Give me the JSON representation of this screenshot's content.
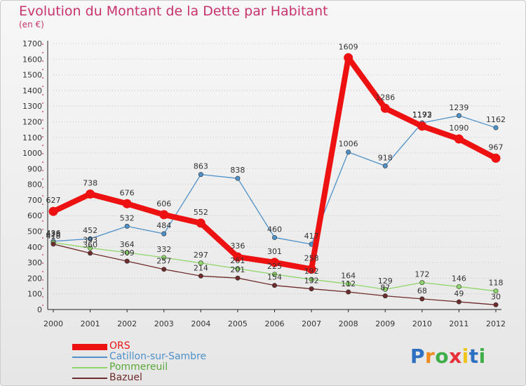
{
  "title": "Evolution du Montant de la Dette par Habitant",
  "unit_label": "(en €)",
  "logo": {
    "letters": [
      "P",
      "r",
      "o",
      "x",
      "i",
      "t",
      "i"
    ],
    "colors": [
      "#2d6fc0",
      "#f08a1c",
      "#3fae49",
      "#e8303a",
      "#f0c419",
      "#2d6fc0",
      "#3fae49"
    ]
  },
  "chart_data": {
    "type": "line",
    "x": [
      "2000",
      "2001",
      "2002",
      "2003",
      "2004",
      "2005",
      "2006",
      "2007",
      "2008",
      "2009",
      "2010",
      "2011",
      "2012"
    ],
    "ylim": [
      0,
      1700
    ],
    "yticks": [
      0,
      100,
      200,
      300,
      400,
      500,
      600,
      700,
      800,
      900,
      1000,
      1100,
      1200,
      1300,
      1400,
      1500,
      1600,
      1700
    ],
    "grid": "horizontal-dotted",
    "legend": "bottom-left",
    "series": [
      {
        "name": "ORS",
        "color": "#ee1111",
        "style": "thick",
        "values": [
          627,
          738,
          676,
          606,
          552,
          336,
          301,
          258,
          1609,
          1286,
          1172,
          1090,
          967
        ]
      },
      {
        "name": "Catillon-sur-Sambre",
        "color": "#4e90c8",
        "style": "thin",
        "values": [
          436,
          452,
          532,
          484,
          863,
          838,
          460,
          417,
          1006,
          918,
          1193,
          1239,
          1162
        ]
      },
      {
        "name": "Pommereuil",
        "color": "#8ed66a",
        "style": "thin",
        "values": [
          428,
          393,
          364,
          332,
          297,
          261,
          225,
          192,
          164,
          129,
          172,
          146,
          118
        ]
      },
      {
        "name": "Bazuel",
        "color": "#6e2b2b",
        "style": "thin",
        "values": [
          418,
          360,
          309,
          257,
          214,
          201,
          154,
          132,
          112,
          87,
          68,
          49,
          30
        ]
      }
    ]
  }
}
